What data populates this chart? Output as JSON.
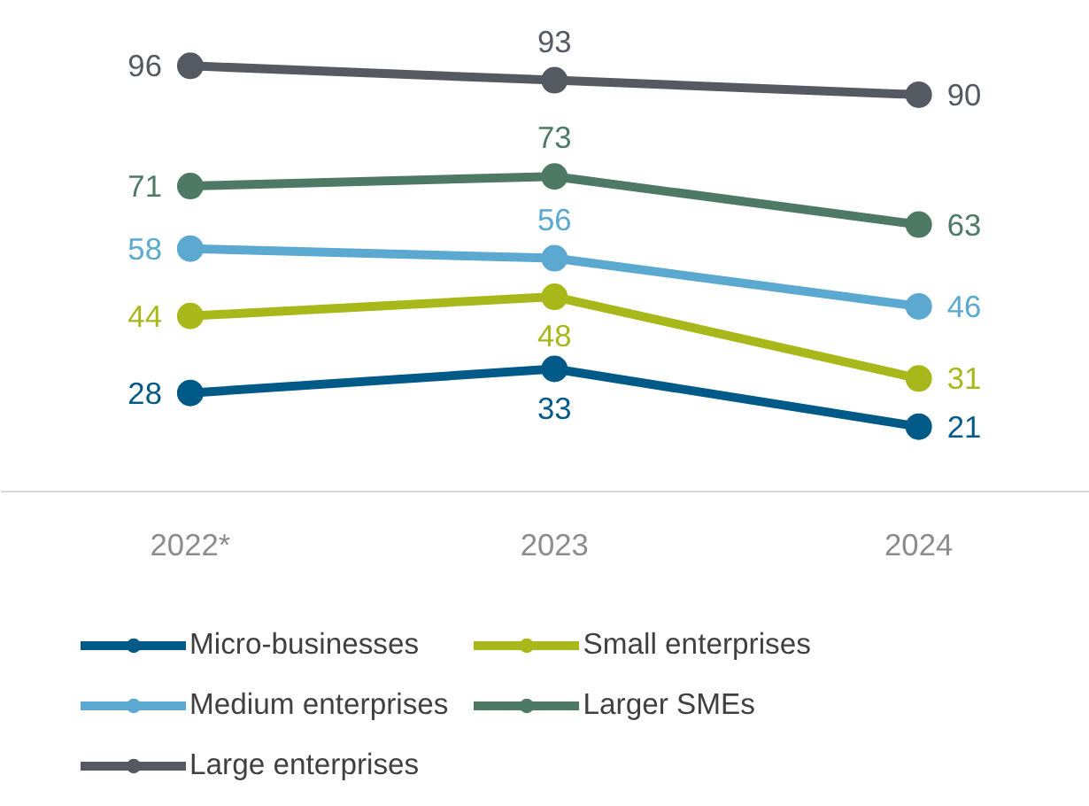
{
  "chart_data": {
    "type": "line",
    "categories": [
      "2022*",
      "2023",
      "2024"
    ],
    "series": [
      {
        "name": "Micro-businesses",
        "color": "#005a87",
        "values": [
          28,
          33,
          21
        ]
      },
      {
        "name": "Small enterprises",
        "color": "#a8b81a",
        "values": [
          44,
          48,
          31
        ]
      },
      {
        "name": "Medium enterprises",
        "color": "#5ba8d0",
        "values": [
          58,
          56,
          46
        ]
      },
      {
        "name": "Larger SMEs",
        "color": "#4e7a65",
        "values": [
          71,
          73,
          63
        ]
      },
      {
        "name": "Large enterprises",
        "color": "#555a62",
        "values": [
          96,
          93,
          90
        ]
      }
    ],
    "tick_labels": "x",
    "data_labels": true,
    "marker": "circle",
    "line_style": "solid",
    "legend": "bottom"
  }
}
